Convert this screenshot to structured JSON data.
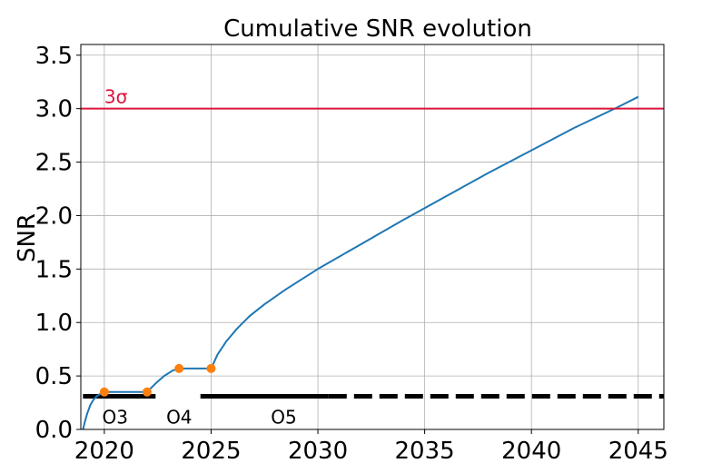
{
  "chart_data": {
    "type": "line",
    "title": "Cumulative SNR evolution",
    "xlabel": "",
    "ylabel": "SNR",
    "xlim": [
      2018.9,
      2046.2
    ],
    "ylim": [
      0.0,
      3.6
    ],
    "xticks": [
      2020,
      2025,
      2030,
      2035,
      2040,
      2045
    ],
    "xtick_labels": [
      "2020",
      "2025",
      "2030",
      "2035",
      "2040",
      "2045"
    ],
    "yticks": [
      0.0,
      0.5,
      1.0,
      1.5,
      2.0,
      2.5,
      3.0,
      3.5
    ],
    "ytick_labels": [
      "0.0",
      "0.5",
      "1.0",
      "1.5",
      "2.0",
      "2.5",
      "3.0",
      "3.5"
    ],
    "grid": true,
    "colors": {
      "curve": "#1f77b4",
      "markers": "#ff7f0e",
      "threshold": "#dc143c",
      "runs": "#000000"
    },
    "series": [
      {
        "kind": "curve",
        "x": [
          2019.0,
          2019.1,
          2019.2,
          2019.35,
          2019.5,
          2019.65,
          2019.8,
          2020.0,
          2020.2,
          2021.0,
          2022.0,
          2022.4,
          2022.8,
          2023.2,
          2023.5,
          2024.0,
          2025.0,
          2025.3,
          2025.7,
          2026.2,
          2026.8,
          2027.5,
          2028.5,
          2030.0,
          2032.0,
          2034.0,
          2036.0,
          2038.0,
          2040.0,
          2042.0,
          2044.0,
          2045.0
        ],
        "y": [
          0.0,
          0.08,
          0.15,
          0.23,
          0.28,
          0.31,
          0.33,
          0.35,
          0.35,
          0.35,
          0.35,
          0.43,
          0.5,
          0.55,
          0.57,
          0.57,
          0.57,
          0.7,
          0.82,
          0.94,
          1.06,
          1.17,
          1.31,
          1.5,
          1.73,
          1.96,
          2.18,
          2.4,
          2.61,
          2.82,
          3.01,
          3.11
        ]
      },
      {
        "kind": "markers",
        "x": [
          2020.0,
          2022.0,
          2023.5,
          2025.0
        ],
        "y": [
          0.35,
          0.35,
          0.57,
          0.57
        ]
      }
    ],
    "threshold": {
      "y": 3.0,
      "label": "3σ"
    },
    "observing_runs": {
      "y": 0.31,
      "solid": [
        [
          2019.0,
          2022.4
        ],
        [
          2024.5,
          2030.5
        ]
      ],
      "dashed": [
        [
          2030.5,
          2046.2
        ]
      ],
      "labels": [
        {
          "text": "O3",
          "x": 2019.9
        },
        {
          "text": "O4",
          "x": 2022.9
        },
        {
          "text": "O5",
          "x": 2027.8
        }
      ]
    }
  }
}
